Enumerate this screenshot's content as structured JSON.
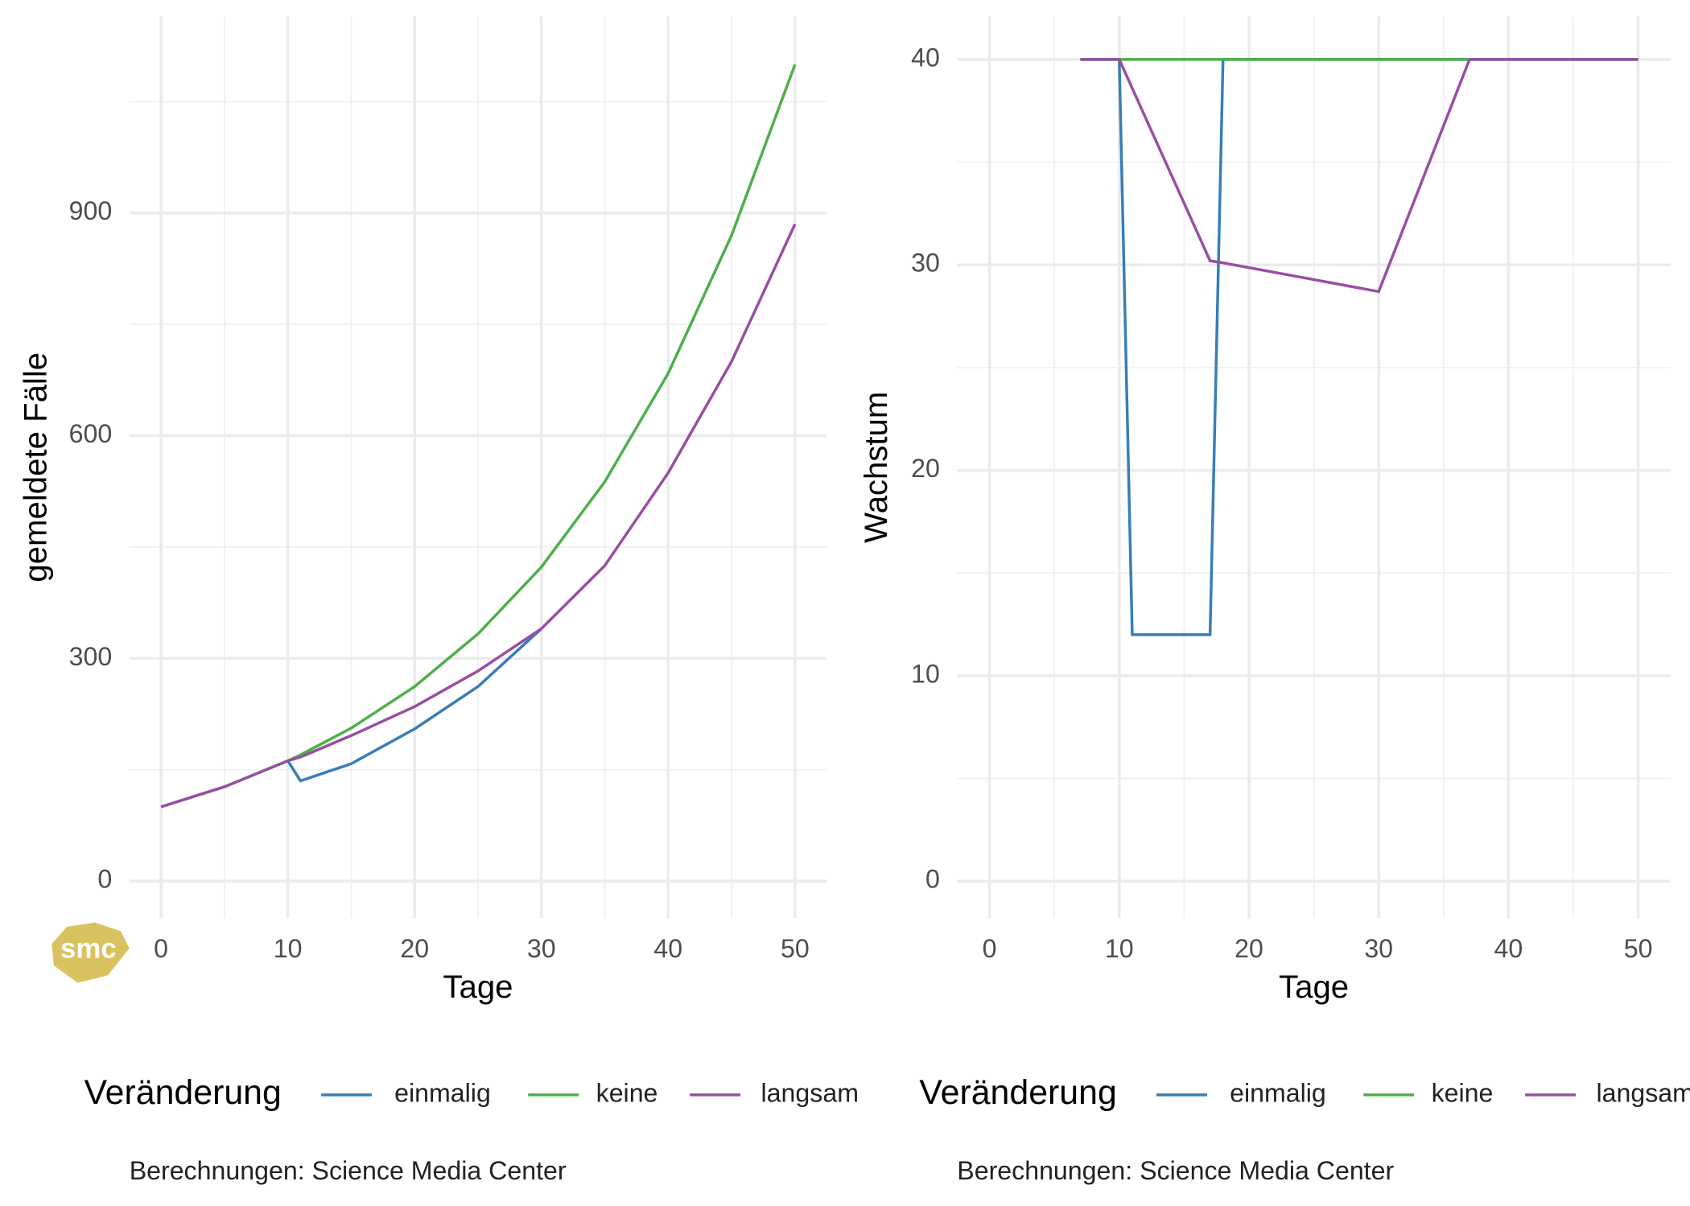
{
  "logo": "smc",
  "chart_data": [
    {
      "type": "line",
      "x_label": "Tage",
      "y_label": "gemeldete Fälle",
      "legend_title": "Veränderung",
      "caption": "Berechnungen: Science Media Center",
      "x": [
        0,
        5,
        10,
        11,
        15,
        20,
        25,
        30,
        35,
        40,
        45,
        50
      ],
      "series": [
        {
          "name": "einmalig",
          "color": "#377eb8",
          "values": [
            null,
            null,
            162,
            135,
            158,
            205,
            262,
            340,
            null,
            null,
            null,
            null
          ]
        },
        {
          "name": "keine",
          "color": "#4daf4a",
          "values": [
            100,
            127,
            162,
            170,
            206,
            262,
            333,
            423,
            538,
            684,
            870,
            1100
          ]
        },
        {
          "name": "langsam",
          "color": "#984ea3",
          "values": [
            100,
            127,
            162,
            167,
            196,
            235,
            283,
            340,
            425,
            550,
            700,
            885
          ]
        }
      ],
      "xlim": [
        -2.5,
        52.5
      ],
      "xticks": [
        0,
        10,
        20,
        30,
        40,
        50
      ],
      "minor_xticks": [
        5,
        15,
        25,
        35,
        45
      ],
      "ylim": [
        -50,
        1165
      ],
      "yticks": [
        0,
        300,
        600,
        900
      ],
      "minor_yticks": [
        150,
        450,
        750,
        1050
      ],
      "grid": true,
      "legend": "bottom"
    },
    {
      "type": "line",
      "x_label": "Tage",
      "y_label": "Wachstum",
      "legend_title": "Veränderung",
      "caption": "Berechnungen: Science Media Center",
      "x": [
        7,
        10,
        11,
        17,
        18,
        30,
        37,
        50
      ],
      "series": [
        {
          "name": "einmalig",
          "color": "#377eb8",
          "values": [
            40,
            40,
            12,
            12,
            40,
            40,
            40,
            40
          ]
        },
        {
          "name": "keine",
          "color": "#4daf4a",
          "values": [
            40,
            40,
            40,
            40,
            40,
            40,
            40,
            40
          ]
        },
        {
          "name": "langsam",
          "color": "#984ea3",
          "values": [
            40,
            40,
            38.6,
            30.2,
            30.1,
            28.7,
            40,
            40
          ]
        }
      ],
      "xlim": [
        -2.5,
        52.5
      ],
      "xticks": [
        0,
        10,
        20,
        30,
        40,
        50
      ],
      "minor_xticks": [
        5,
        15,
        25,
        35,
        45
      ],
      "ylim": [
        -1.8,
        42.1
      ],
      "yticks": [
        0,
        10,
        20,
        30,
        40
      ],
      "minor_yticks": [
        5,
        15,
        25,
        35
      ],
      "grid": true,
      "legend": "bottom"
    }
  ]
}
